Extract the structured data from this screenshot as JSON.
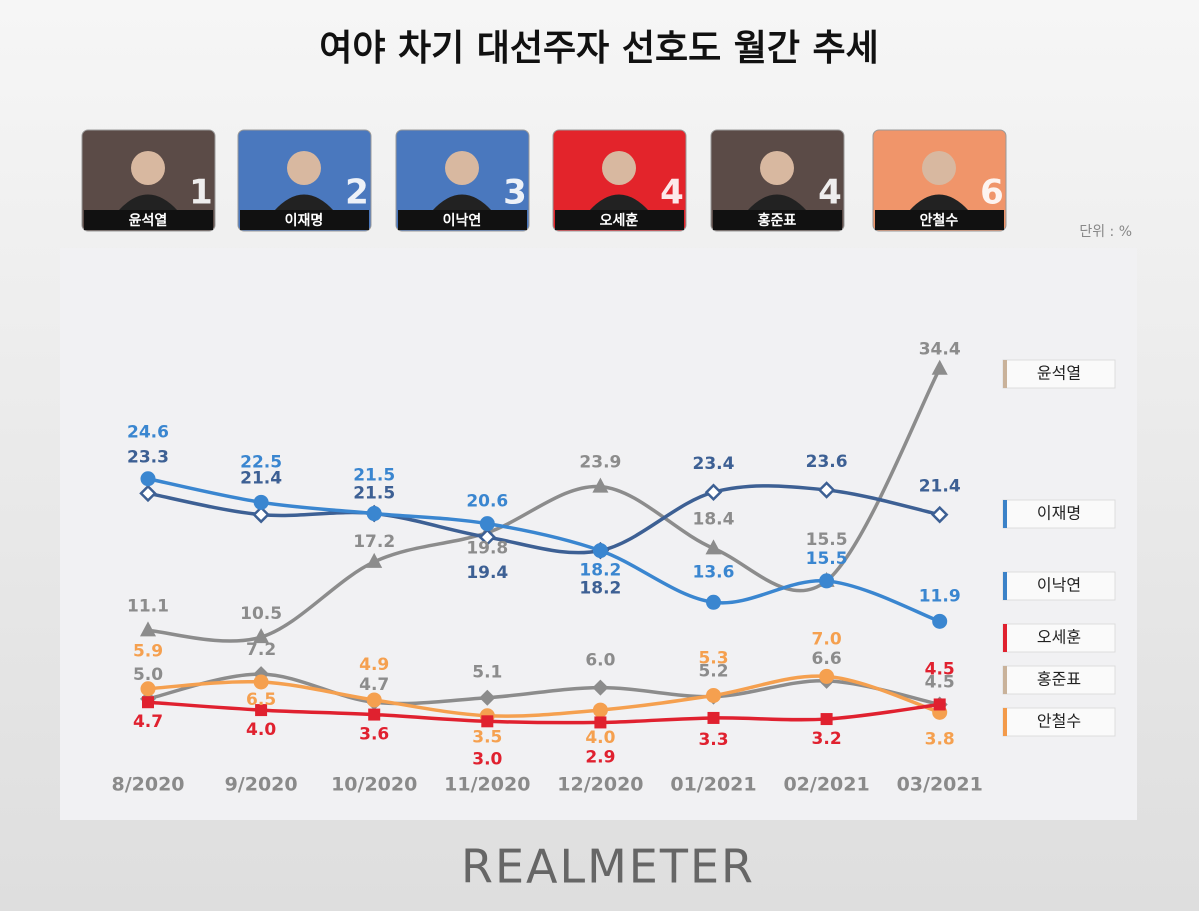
{
  "title": "여야 차기 대선주자 선호도 월간 추세",
  "candidates": [
    {
      "name": "윤석열",
      "rank": 1,
      "color": "#5b4b47"
    },
    {
      "name": "이재명",
      "rank": 2,
      "color": "#4a78be"
    },
    {
      "name": "이낙연",
      "rank": 3,
      "color": "#4a78be"
    },
    {
      "name": "오세훈",
      "rank": 4,
      "color": "#e3242b"
    },
    {
      "name": "홍준표",
      "rank": 4,
      "color": "#5b4b47"
    },
    {
      "name": "안철수",
      "rank": 6,
      "color": "#f0956a"
    }
  ],
  "unit": "단위 : %",
  "chart_data": {
    "type": "line",
    "categories": [
      "8/2020",
      "9/2020",
      "10/2020",
      "11/2020",
      "12/2020",
      "01/2021",
      "02/2021",
      "03/2021"
    ],
    "series": [
      {
        "name": "윤석열",
        "color": "#8c8c8c",
        "legend_color": "#c9b29a",
        "marker": "triangle",
        "values": [
          11.1,
          10.5,
          17.2,
          19.8,
          23.9,
          18.4,
          15.5,
          34.4
        ]
      },
      {
        "name": "이재명",
        "color": "#3d6094",
        "legend_color": "#3b82c8",
        "marker": "diamond-open",
        "values": [
          23.3,
          21.4,
          21.5,
          19.4,
          18.2,
          23.4,
          23.6,
          21.4
        ]
      },
      {
        "name": "이낙연",
        "color": "#3a86d0",
        "legend_color": "#3b82c8",
        "marker": "circle",
        "values": [
          24.6,
          22.5,
          21.5,
          20.6,
          18.2,
          13.6,
          15.5,
          11.9
        ]
      },
      {
        "name": "오세훈",
        "color": "#e0212f",
        "legend_color": "#e0212f",
        "marker": "square",
        "values": [
          4.7,
          4,
          3.6,
          3,
          2.9,
          3.3,
          3.2,
          4.5
        ],
        "value_labels": [
          "4.7",
          "4.0",
          "3.6",
          "3.0",
          "2.9",
          "3.3",
          "3.2",
          "4.5"
        ]
      },
      {
        "name": "홍준표",
        "color": "#8c8c8c",
        "legend_color": "#c9b29a",
        "marker": "diamond",
        "values": [
          5,
          7.2,
          4.7,
          5.1,
          6,
          5.2,
          6.6,
          4.5
        ],
        "value_labels": [
          "5.0",
          "7.2",
          "4.7",
          "5.1",
          "6.0",
          "5.2",
          "6.6",
          "4.5"
        ]
      },
      {
        "name": "안철수",
        "color": "#f5a04f",
        "legend_color": "#f39a4a",
        "marker": "circle",
        "values": [
          5.9,
          6.5,
          4.9,
          3.5,
          4,
          5.3,
          7,
          3.8
        ],
        "value_labels": [
          "5.9",
          "6.5",
          "4.9",
          "3.5",
          "4.0",
          "5.3",
          "7.0",
          "3.8"
        ]
      }
    ]
  },
  "footer": "REALMETER"
}
